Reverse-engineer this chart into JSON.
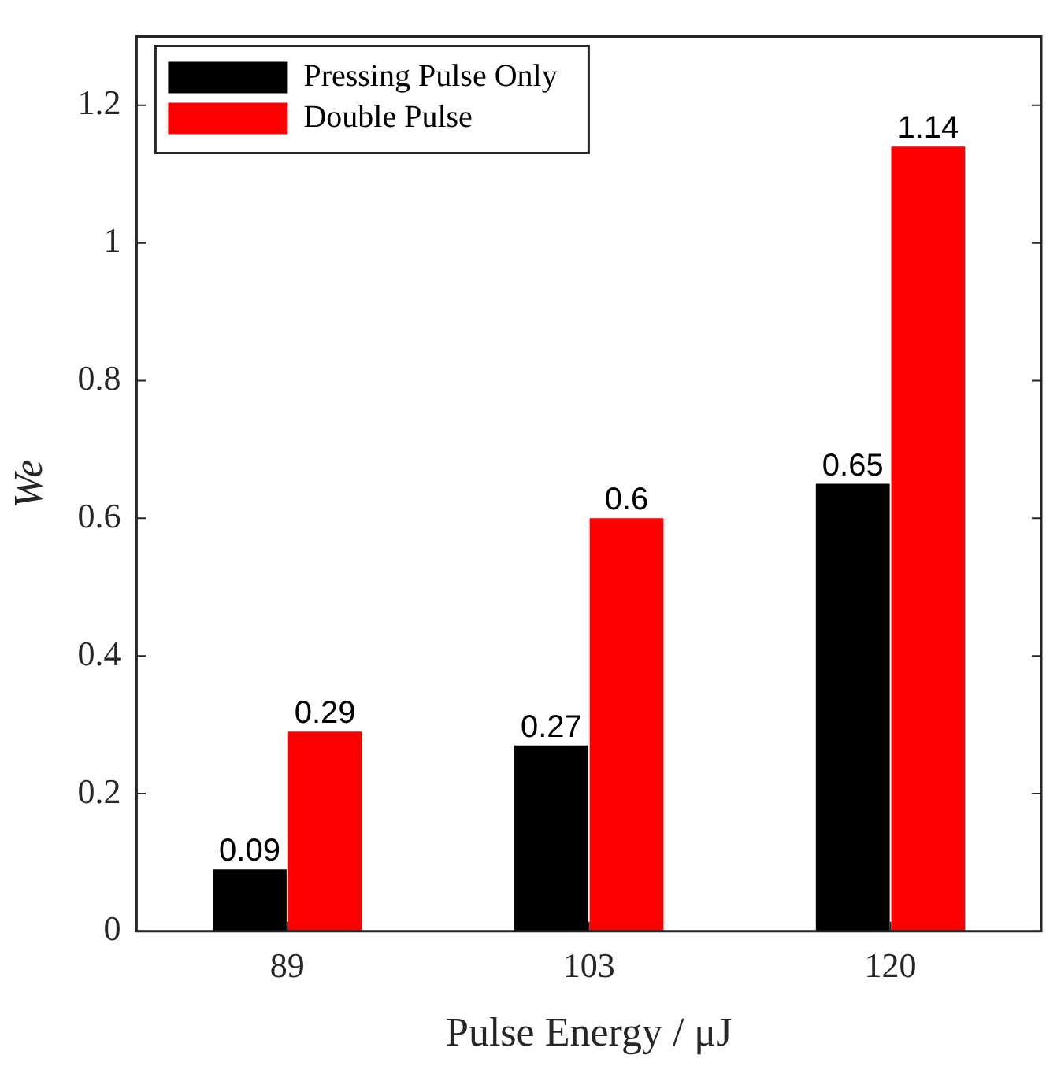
{
  "chart_data": {
    "type": "bar",
    "xlabel": "Pulse Energy / μJ",
    "ylabel": "We",
    "categories": [
      "89",
      "103",
      "120"
    ],
    "series": [
      {
        "name": "Pressing Pulse Only",
        "color": "#000000",
        "values": [
          0.09,
          0.27,
          0.65
        ]
      },
      {
        "name": "Double Pulse",
        "color": "#ff0000",
        "values": [
          0.29,
          0.6,
          1.14
        ]
      }
    ],
    "ylim": [
      0,
      1.3
    ],
    "yticks": [
      0,
      0.2,
      0.4,
      0.6,
      0.8,
      1,
      1.2
    ],
    "data_labels": true,
    "legend": "top left",
    "grid": false
  }
}
